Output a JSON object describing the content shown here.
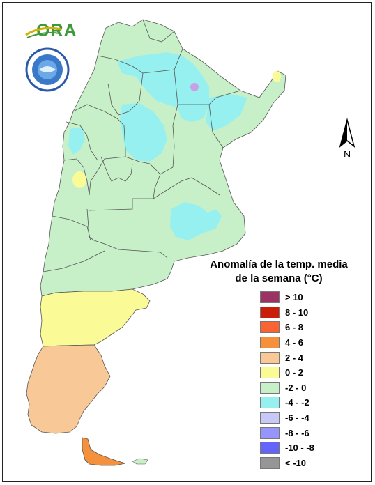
{
  "logo": {
    "text": "ORA"
  },
  "seal": {
    "description_icon": "smn-seal-icon"
  },
  "north_arrow": {
    "label": "N"
  },
  "legend": {
    "title_line1": "Anomalía de la temp. media",
    "title_line2": "de la semana (°C)",
    "items": [
      {
        "label": "> 10",
        "color": "#9c3264"
      },
      {
        "label": "8 - 10",
        "color": "#c81e0a"
      },
      {
        "label": "6 - 8",
        "color": "#fa6432"
      },
      {
        "label": "4 - 6",
        "color": "#f5913c"
      },
      {
        "label": "2 - 4",
        "color": "#f8c896"
      },
      {
        "label": "0 - 2",
        "color": "#fafa96"
      },
      {
        "label": "-2 - 0",
        "color": "#c8f0c8"
      },
      {
        "label": "-4 - -2",
        "color": "#96f0f0"
      },
      {
        "label": "-6 - -4",
        "color": "#c8c8f8"
      },
      {
        "label": "-8 - -6",
        "color": "#9696fa"
      },
      {
        "label": "-10 - -8",
        "color": "#6464fa"
      },
      {
        "label": "< -10",
        "color": "#969696"
      }
    ]
  }
}
